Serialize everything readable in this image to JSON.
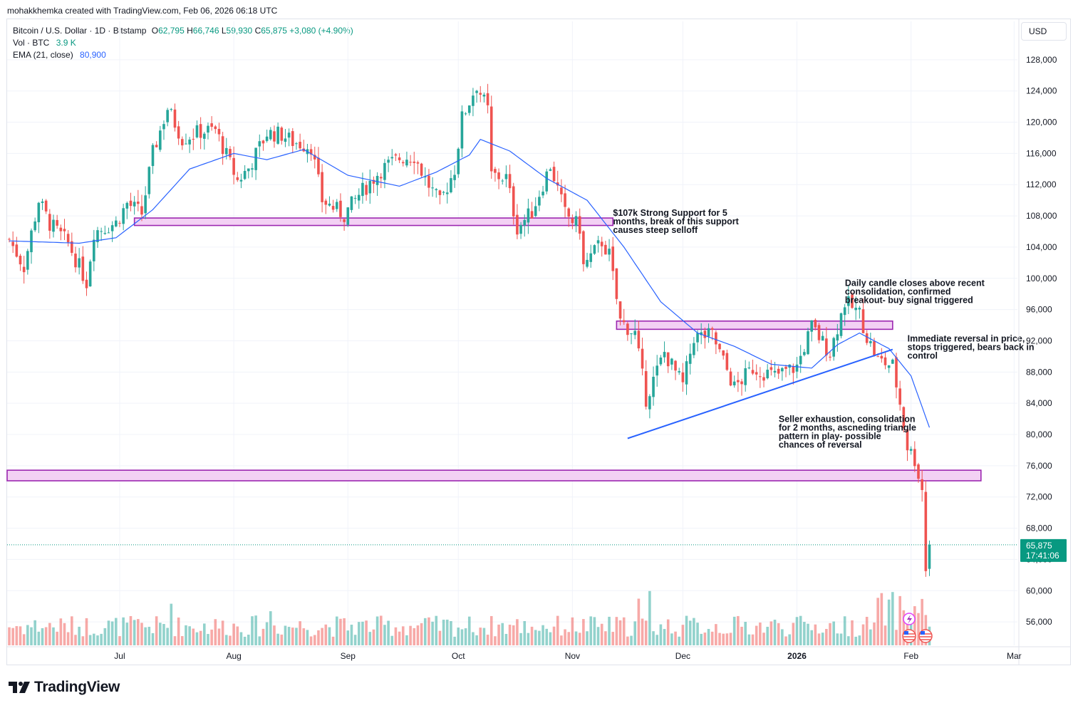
{
  "header": {
    "credit": "mohakkhemka created with TradingView.com, Feb 06, 2026 06:18 UTC",
    "symbol": "Bitcoin / U.S. Dollar · 1D · Bitstamp",
    "open_label": "O",
    "open": "62,795",
    "high_label": "H",
    "high": "66,746",
    "low_label": "L",
    "low": "59,930",
    "close_label": "C",
    "close": "65,875",
    "change": "+3,080 (+4.90%)",
    "vol_label": "Vol · BTC",
    "vol": "3.9 K",
    "ema_label": "EMA (21, close)",
    "ema": "80,900"
  },
  "currency": "USD",
  "brand": {
    "name": "TradingView",
    "icon": "tradingview-logo-icon"
  },
  "colors": {
    "up": "#26a69a",
    "down": "#ef5350",
    "ema": "#2962ff",
    "zone": "#9c27b0",
    "zone_fill": "#f3d1f4",
    "trendline": "#2962ff"
  },
  "chart_data": {
    "type": "candlestick",
    "title": "Bitcoin / U.S. Dollar · 1D · Bitstamp",
    "x_axis": {
      "ticks": [
        "Jul",
        "Aug",
        "Sep",
        "Oct",
        "Nov",
        "Dec",
        "2026",
        "Feb",
        "Mar"
      ]
    },
    "y_axis": {
      "ticks": [
        56000,
        60000,
        64000,
        68000,
        72000,
        76000,
        80000,
        84000,
        88000,
        92000,
        96000,
        100000,
        104000,
        108000,
        112000,
        116000,
        120000,
        124000,
        128000
      ],
      "labels": [
        "56,000",
        "60,000",
        "64,000",
        "68,000",
        "72,000",
        "76,000",
        "80,000",
        "84,000",
        "88,000",
        "92,000",
        "96,000",
        "100,000",
        "104,000",
        "108,000",
        "112,000",
        "116,000",
        "120,000",
        "124,000",
        "128,000"
      ],
      "range": [
        53000,
        132000
      ],
      "position": "right"
    },
    "last_price": {
      "label": "65,875",
      "countdown": "17:41:06",
      "value": 65875
    },
    "close_path": [
      [
        "2025-06-01",
        105000
      ],
      [
        "2025-06-05",
        101500
      ],
      [
        "2025-06-09",
        110000
      ],
      [
        "2025-06-12",
        107000
      ],
      [
        "2025-06-17",
        104500
      ],
      [
        "2025-06-22",
        99500
      ],
      [
        "2025-06-24",
        106000
      ],
      [
        "2025-06-30",
        107100
      ],
      [
        "2025-07-03",
        109600
      ],
      [
        "2025-07-07",
        108300
      ],
      [
        "2025-07-10",
        116000
      ],
      [
        "2025-07-14",
        121800
      ],
      [
        "2025-07-18",
        117900
      ],
      [
        "2025-07-23",
        118800
      ],
      [
        "2025-07-27",
        119000
      ],
      [
        "2025-08-02",
        112500
      ],
      [
        "2025-08-05",
        114100
      ],
      [
        "2025-08-10",
        118600
      ],
      [
        "2025-08-14",
        118400
      ],
      [
        "2025-08-17",
        117500
      ],
      [
        "2025-08-22",
        116900
      ],
      [
        "2025-08-25",
        110000
      ],
      [
        "2025-08-31",
        108100
      ],
      [
        "2025-09-04",
        110700
      ],
      [
        "2025-09-10",
        113900
      ],
      [
        "2025-09-15",
        115400
      ],
      [
        "2025-09-19",
        115700
      ],
      [
        "2025-09-22",
        112700
      ],
      [
        "2025-09-26",
        109600
      ],
      [
        "2025-09-30",
        114000
      ],
      [
        "2025-10-02",
        120500
      ],
      [
        "2025-10-06",
        124800
      ],
      [
        "2025-10-09",
        121500
      ],
      [
        "2025-10-10",
        113200
      ],
      [
        "2025-10-14",
        112900
      ],
      [
        "2025-10-17",
        106500
      ],
      [
        "2025-10-21",
        108500
      ],
      [
        "2025-10-26",
        114500
      ],
      [
        "2025-10-30",
        108300
      ],
      [
        "2025-11-03",
        106500
      ],
      [
        "2025-11-04",
        101500
      ],
      [
        "2025-11-09",
        104700
      ],
      [
        "2025-11-11",
        103000
      ],
      [
        "2025-11-14",
        94500
      ],
      [
        "2025-11-18",
        92900
      ],
      [
        "2025-11-21",
        84600
      ],
      [
        "2025-11-26",
        90500
      ],
      [
        "2025-12-01",
        86300
      ],
      [
        "2025-12-04",
        92500
      ],
      [
        "2025-12-09",
        92700
      ],
      [
        "2025-12-15",
        86000
      ],
      [
        "2025-12-20",
        88500
      ],
      [
        "2025-12-26",
        87500
      ],
      [
        "2026-01-01",
        88700
      ],
      [
        "2026-01-05",
        93800
      ],
      [
        "2026-01-10",
        90500
      ],
      [
        "2026-01-14",
        97000
      ],
      [
        "2026-01-18",
        95500
      ],
      [
        "2026-01-20",
        92500
      ],
      [
        "2026-01-23",
        89500
      ],
      [
        "2026-01-27",
        88800
      ],
      [
        "2026-01-29",
        84000
      ],
      [
        "2026-01-31",
        78500
      ],
      [
        "2026-02-02",
        76800
      ],
      [
        "2026-02-04",
        73000
      ],
      [
        "2026-02-05",
        62800
      ],
      [
        "2026-02-06",
        65875
      ]
    ],
    "ema_path": [
      [
        "2025-06-01",
        104800
      ],
      [
        "2025-06-20",
        104500
      ],
      [
        "2025-06-30",
        105200
      ],
      [
        "2025-07-10",
        108800
      ],
      [
        "2025-07-20",
        114000
      ],
      [
        "2025-08-01",
        116000
      ],
      [
        "2025-08-10",
        115200
      ],
      [
        "2025-08-20",
        116500
      ],
      [
        "2025-09-01",
        113200
      ],
      [
        "2025-09-15",
        111800
      ],
      [
        "2025-09-25",
        113600
      ],
      [
        "2025-10-04",
        115800
      ],
      [
        "2025-10-07",
        117800
      ],
      [
        "2025-10-15",
        116300
      ],
      [
        "2025-10-25",
        112800
      ],
      [
        "2025-11-05",
        110000
      ],
      [
        "2025-11-15",
        104000
      ],
      [
        "2025-11-25",
        97000
      ],
      [
        "2025-12-05",
        93000
      ],
      [
        "2025-12-15",
        91300
      ],
      [
        "2025-12-25",
        89000
      ],
      [
        "2026-01-05",
        88500
      ],
      [
        "2026-01-12",
        91500
      ],
      [
        "2026-01-18",
        93000
      ],
      [
        "2026-01-26",
        91000
      ],
      [
        "2026-02-01",
        87500
      ],
      [
        "2026-02-06",
        80900
      ]
    ],
    "zones": [
      {
        "from": "2025-07-05",
        "to": "2025-11-12",
        "low": 107000,
        "high": 107500
      },
      {
        "from": "2025-11-13",
        "to": "2026-01-27",
        "low": 93700,
        "high": 94300
      },
      {
        "from": "2025-05-28",
        "to": "2026-02-20",
        "low": 74300,
        "high": 75200
      }
    ],
    "trendline": {
      "from": [
        "2025-11-16",
        79500
      ],
      "to": [
        "2026-01-27",
        90900
      ]
    },
    "annotations": [
      {
        "lines": [
          "$107k Strong Support for 5",
          "months, break of this support",
          "causes steep selloff"
        ],
        "date": "2025-11-13",
        "price": 108000
      },
      {
        "lines": [
          "Daily candle closes above recent",
          "consolidation, confirmed",
          "breakout- buy signal triggered"
        ],
        "date": "2026-01-15",
        "price": 99000
      },
      {
        "lines": [
          "Immediate reversal in price,",
          "stops triggered, bears back in",
          "control"
        ],
        "date": "2026-02-01",
        "price": 91900
      },
      {
        "lines": [
          "Seller exhaustion, consolidation",
          "for 2 months, ascneding triangle",
          "pattern in play- possible",
          "chances of reversal"
        ],
        "date": "2025-12-28",
        "price": 81600
      }
    ],
    "grid": true,
    "volume": true
  }
}
